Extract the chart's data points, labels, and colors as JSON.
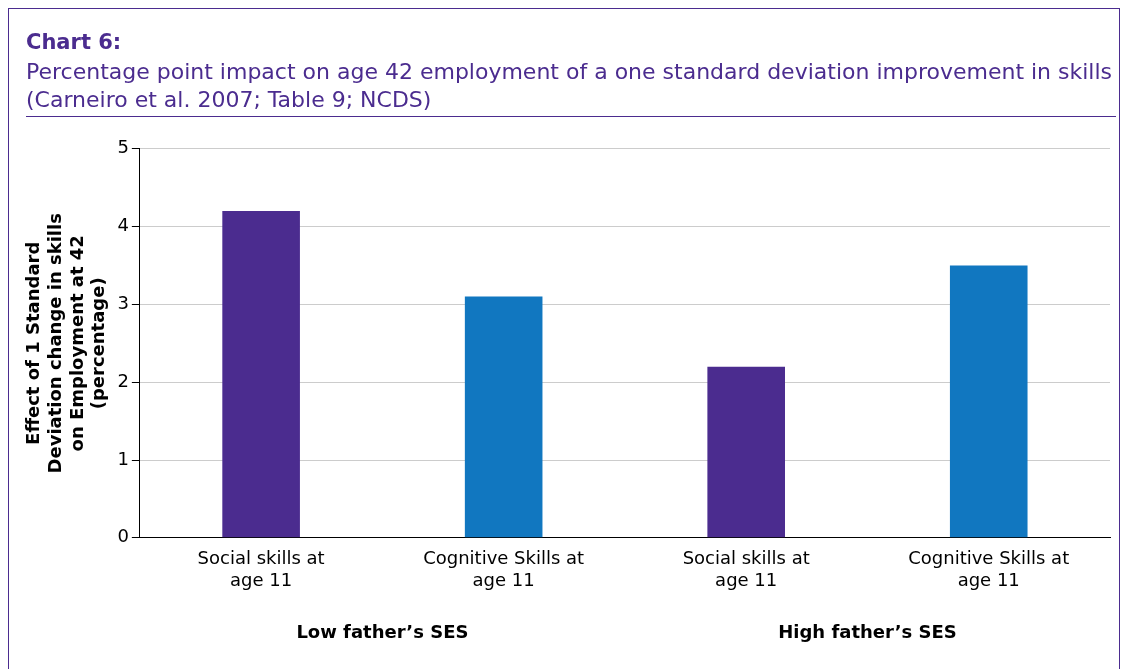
{
  "chart_data": {
    "type": "bar",
    "title": "Chart 6:",
    "subtitle": "Percentage point impact on age 42 employment of a one standard deviation improvement in skills (Carneiro et al. 2007; Table 9; NCDS)",
    "ylabel": "Effect of 1 Standard Deviation change in skills on Employment at 42 (percentage)",
    "categories": [
      "Social skills at age 11",
      "Cognitive Skills at age 11",
      "Social skills at age 11",
      "Cognitive Skills at age 11"
    ],
    "values": [
      4.2,
      3.1,
      2.2,
      3.5
    ],
    "colors": [
      "#4b2c8f",
      "#1177c0",
      "#4b2c8f",
      "#1177c0"
    ],
    "ylim": [
      0,
      5
    ],
    "yticks": [
      0,
      1,
      2,
      3,
      4,
      5
    ],
    "grid": "y",
    "legend": false,
    "annotations": [
      "Low father’s SES",
      "High father’s SES"
    ]
  }
}
